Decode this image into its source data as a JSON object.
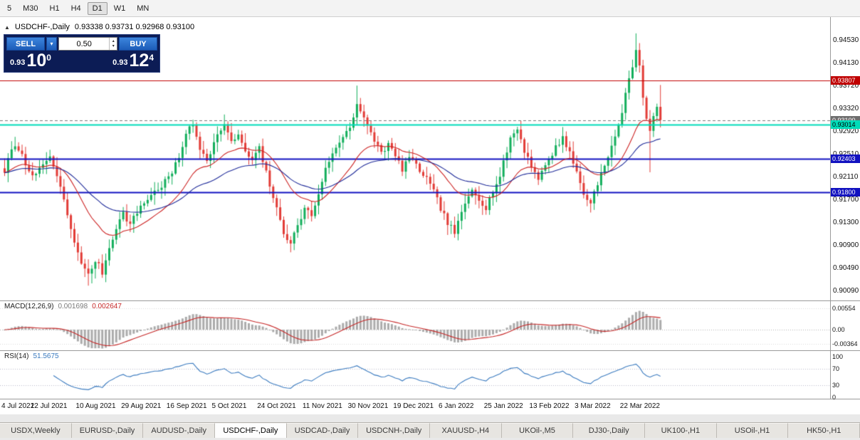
{
  "icons": {
    "collapse_marker": "▲",
    "chevron_down": "▾",
    "spinner_up": "▴",
    "spinner_down": "▾"
  },
  "toolbar": {
    "timeframes": [
      "5",
      "M30",
      "H1",
      "H4",
      "D1",
      "W1",
      "MN"
    ],
    "active": "D1"
  },
  "chart": {
    "symbol_title": "USDCHF-,Daily",
    "ohlc_text": "0.93338 0.93731 0.92968 0.93100",
    "trade_panel": {
      "sell_label": "SELL",
      "buy_label": "BUY",
      "volume": "0.50",
      "sell_price": {
        "small": "0.93",
        "big": "10",
        "sup": "0"
      },
      "buy_price": {
        "small": "0.93",
        "big": "12",
        "sup": "4"
      }
    },
    "date_axis": [
      "4 Jul 2021",
      "22 Jul 2021",
      "10 Aug 2021",
      "29 Aug 2021",
      "16 Sep 2021",
      "5 Oct 2021",
      "24 Oct 2021",
      "11 Nov 2021",
      "30 Nov 2021",
      "19 Dec 2021",
      "6 Jan 2022",
      "25 Jan 2022",
      "13 Feb 2022",
      "3 Mar 2022",
      "22 Mar 2022"
    ]
  },
  "macd": {
    "label": "MACD(12,26,9)",
    "value_main": "0.001698",
    "value_signal": "0.002647",
    "axis": [
      "0.00554",
      "0.00",
      "-0.00364"
    ]
  },
  "rsi": {
    "label": "RSI(14)",
    "value": "51.5675",
    "axis": [
      "100",
      "70",
      "30",
      "0"
    ]
  },
  "tabs": [
    {
      "label": "USDX,Weekly",
      "active": false
    },
    {
      "label": "EURUSD-,Daily",
      "active": false
    },
    {
      "label": "AUDUSD-,Daily",
      "active": false
    },
    {
      "label": "USDCHF-,Daily",
      "active": true
    },
    {
      "label": "USDCAD-,Daily",
      "active": false
    },
    {
      "label": "USDCNH-,Daily",
      "active": false
    },
    {
      "label": "XAUUSD-,H4",
      "active": false
    },
    {
      "label": "UKOil-,M5",
      "active": false
    },
    {
      "label": "DJ30-,Daily",
      "active": false
    },
    {
      "label": "UK100-,H1",
      "active": false
    },
    {
      "label": "USOil-,H1",
      "active": false
    },
    {
      "label": "HK50-,H1",
      "active": false
    }
  ],
  "chart_data": {
    "type": "candlestick",
    "symbol": "USDCHF",
    "period": "Daily",
    "last_candle": {
      "o": 0.93338,
      "h": 0.93731,
      "l": 0.92968,
      "c": 0.931
    },
    "candle_count": 189,
    "candle_colors": {
      "bull": "#12ae5b",
      "bear": "#e23b36"
    },
    "price_axis": {
      "top_tick": 0.9453,
      "tick_step": 0.0041,
      "ticks": [
        "0.94530",
        "0.94130",
        "0.93720",
        "0.93320",
        "0.92920",
        "0.92510",
        "0.92110",
        "0.91700",
        "0.91300",
        "0.90900",
        "0.90490",
        "0.90090"
      ]
    },
    "price_anchors": [
      [
        0,
        0.9218
      ],
      [
        2,
        0.9256
      ],
      [
        4,
        0.926
      ],
      [
        6,
        0.923
      ],
      [
        9,
        0.9208
      ],
      [
        11,
        0.923
      ],
      [
        13,
        0.9244
      ],
      [
        15,
        0.9206
      ],
      [
        17,
        0.9168
      ],
      [
        19,
        0.911
      ],
      [
        21,
        0.9072
      ],
      [
        23,
        0.904
      ],
      [
        24,
        0.903
      ],
      [
        26,
        0.9058
      ],
      [
        28,
        0.9036
      ],
      [
        30,
        0.908
      ],
      [
        32,
        0.9118
      ],
      [
        34,
        0.9142
      ],
      [
        36,
        0.9122
      ],
      [
        39,
        0.9155
      ],
      [
        42,
        0.9175
      ],
      [
        45,
        0.9192
      ],
      [
        48,
        0.9215
      ],
      [
        50,
        0.9242
      ],
      [
        52,
        0.9288
      ],
      [
        54,
        0.93
      ],
      [
        56,
        0.926
      ],
      [
        58,
        0.924
      ],
      [
        60,
        0.9268
      ],
      [
        62,
        0.9295
      ],
      [
        63,
        0.9302
      ],
      [
        65,
        0.9268
      ],
      [
        67,
        0.9285
      ],
      [
        69,
        0.925
      ],
      [
        71,
        0.9238
      ],
      [
        73,
        0.9258
      ],
      [
        75,
        0.9215
      ],
      [
        77,
        0.9172
      ],
      [
        78,
        0.9148
      ],
      [
        80,
        0.9108
      ],
      [
        82,
        0.909
      ],
      [
        84,
        0.9118
      ],
      [
        86,
        0.9152
      ],
      [
        88,
        0.9138
      ],
      [
        90,
        0.9178
      ],
      [
        91,
        0.9202
      ],
      [
        93,
        0.9238
      ],
      [
        95,
        0.9258
      ],
      [
        97,
        0.9282
      ],
      [
        99,
        0.9298
      ],
      [
        101,
        0.934
      ],
      [
        103,
        0.9312
      ],
      [
        104,
        0.9296
      ],
      [
        106,
        0.9274
      ],
      [
        108,
        0.9252
      ],
      [
        110,
        0.9266
      ],
      [
        112,
        0.9244
      ],
      [
        114,
        0.9222
      ],
      [
        116,
        0.9244
      ],
      [
        117,
        0.9234
      ],
      [
        119,
        0.922
      ],
      [
        121,
        0.9204
      ],
      [
        123,
        0.918
      ],
      [
        125,
        0.9152
      ],
      [
        127,
        0.9124
      ],
      [
        129,
        0.9108
      ],
      [
        130,
        0.9124
      ],
      [
        132,
        0.9158
      ],
      [
        134,
        0.9186
      ],
      [
        136,
        0.917
      ],
      [
        138,
        0.9152
      ],
      [
        140,
        0.9184
      ],
      [
        142,
        0.9208
      ],
      [
        143,
        0.9232
      ],
      [
        145,
        0.9278
      ],
      [
        147,
        0.9294
      ],
      [
        149,
        0.9256
      ],
      [
        151,
        0.9228
      ],
      [
        153,
        0.9206
      ],
      [
        155,
        0.9226
      ],
      [
        156,
        0.924
      ],
      [
        158,
        0.926
      ],
      [
        160,
        0.928
      ],
      [
        162,
        0.925
      ],
      [
        164,
        0.9216
      ],
      [
        166,
        0.9178
      ],
      [
        168,
        0.9158
      ],
      [
        169,
        0.9184
      ],
      [
        171,
        0.9212
      ],
      [
        173,
        0.9242
      ],
      [
        175,
        0.928
      ],
      [
        177,
        0.9326
      ],
      [
        179,
        0.9382
      ],
      [
        181,
        0.9438
      ],
      [
        182,
        0.9408
      ],
      [
        183,
        0.9355
      ],
      [
        184,
        0.9312
      ],
      [
        185,
        0.9286
      ],
      [
        186,
        0.9318
      ],
      [
        187,
        0.9334
      ],
      [
        188,
        0.931
      ]
    ],
    "wick_overrides": [
      {
        "i": 2,
        "high": 0.9272
      },
      {
        "i": 24,
        "low": 0.9012
      },
      {
        "i": 28,
        "low": 0.9026
      },
      {
        "i": 63,
        "high": 0.932
      },
      {
        "i": 82,
        "low": 0.9072
      },
      {
        "i": 101,
        "high": 0.9372
      },
      {
        "i": 181,
        "high": 0.9466
      },
      {
        "i": 185,
        "low": 0.9216
      }
    ],
    "horizontal_lines": [
      {
        "price": 0.93807,
        "label": "0.93807",
        "color": "#c00000",
        "text_color": "#ffffff",
        "width": 1.2
      },
      {
        "price": 0.93014,
        "label": "0.93014",
        "color": "#00dcb9",
        "text_color": "#000000",
        "width": 2
      },
      {
        "price": 0.92403,
        "label": "0.92403",
        "color": "#1212c0",
        "text_color": "#ffffff",
        "width": 2
      },
      {
        "price": 0.918,
        "label": "0.91800",
        "color": "#1212c0",
        "text_color": "#ffffff",
        "width": 2
      }
    ],
    "bid_line": {
      "price": 0.931,
      "label": "0.93100",
      "color": "#787878"
    },
    "moving_averages": [
      {
        "period": 20,
        "color": "#cc2222"
      },
      {
        "period": 45,
        "color": "#1e2a99"
      }
    ],
    "macd": {
      "fast": 12,
      "slow": 26,
      "signal": 9,
      "axis_max": 0.00554,
      "axis_min": -0.00364,
      "histogram_color": "#ababab",
      "signal_color": "#c62828"
    },
    "rsi": {
      "period": 14,
      "levels": [
        70,
        30
      ],
      "color": "#3a7abf",
      "current": 51.5675
    }
  }
}
